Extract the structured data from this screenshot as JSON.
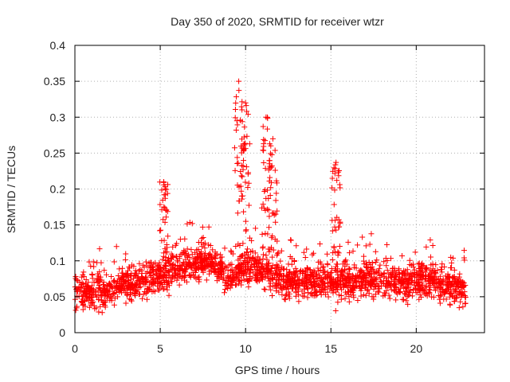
{
  "chart_data": {
    "type": "scatter",
    "title": "Day 350 of 2020, SRMTID for receiver wtzr",
    "xlabel": "GPS time / hours",
    "ylabel": "SRMTID / TECUs",
    "xlim": [
      0,
      24
    ],
    "ylim": [
      0,
      0.4
    ],
    "xticks": [
      0,
      5,
      10,
      15,
      20
    ],
    "xtick_labels": [
      "0",
      "5",
      "10",
      "15",
      "20"
    ],
    "yticks": [
      0,
      0.05,
      0.1,
      0.15,
      0.2,
      0.25,
      0.3,
      0.35,
      0.4
    ],
    "ytick_labels": [
      "0",
      "0.05",
      "0.1",
      "0.15",
      "0.2",
      "0.25",
      "0.3",
      "0.35",
      "0.4"
    ],
    "grid": true,
    "marker": "+",
    "series_color": "#ff0000",
    "profile": {
      "description": "representative baseline (median SRMTID) per hour, with notable peaks",
      "baseline": [
        [
          0,
          0.055
        ],
        [
          1,
          0.06
        ],
        [
          2,
          0.055
        ],
        [
          3,
          0.065
        ],
        [
          4,
          0.07
        ],
        [
          5,
          0.08
        ],
        [
          6,
          0.09
        ],
        [
          7,
          0.095
        ],
        [
          8,
          0.1
        ],
        [
          9,
          0.08
        ],
        [
          10,
          0.09
        ],
        [
          11,
          0.085
        ],
        [
          12,
          0.075
        ],
        [
          13,
          0.07
        ],
        [
          14,
          0.07
        ],
        [
          15,
          0.07
        ],
        [
          16,
          0.072
        ],
        [
          17,
          0.075
        ],
        [
          18,
          0.075
        ],
        [
          19,
          0.07
        ],
        [
          20,
          0.075
        ],
        [
          21,
          0.072
        ],
        [
          22,
          0.065
        ],
        [
          22.9,
          0.06
        ]
      ],
      "peaks": [
        {
          "x": 5.2,
          "y": 0.21
        },
        {
          "x": 9.6,
          "y": 0.35
        },
        {
          "x": 10.0,
          "y": 0.32
        },
        {
          "x": 11.2,
          "y": 0.3
        },
        {
          "x": 11.6,
          "y": 0.27
        },
        {
          "x": 15.3,
          "y": 0.237
        }
      ]
    }
  }
}
